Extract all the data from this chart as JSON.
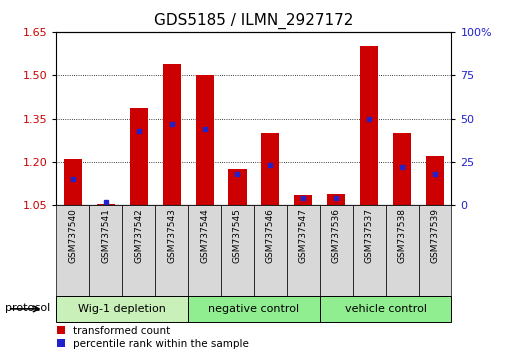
{
  "title": "GDS5185 / ILMN_2927172",
  "samples": [
    "GSM737540",
    "GSM737541",
    "GSM737542",
    "GSM737543",
    "GSM737544",
    "GSM737545",
    "GSM737546",
    "GSM737547",
    "GSM737536",
    "GSM737537",
    "GSM737538",
    "GSM737539"
  ],
  "transformed_count": [
    1.21,
    1.055,
    1.385,
    1.54,
    1.5,
    1.175,
    1.3,
    1.085,
    1.09,
    1.6,
    1.3,
    1.22
  ],
  "percentile_rank": [
    15,
    2,
    43,
    47,
    44,
    18,
    23,
    4,
    4,
    50,
    22,
    18
  ],
  "group_starts": [
    0,
    4,
    8
  ],
  "group_ends": [
    4,
    8,
    12
  ],
  "group_labels": [
    "Wig-1 depletion",
    "negative control",
    "vehicle control"
  ],
  "group_colors": [
    "#c8f0b8",
    "#90ee90",
    "#90ee90"
  ],
  "ylim_left": [
    1.05,
    1.65
  ],
  "yticks_left": [
    1.05,
    1.2,
    1.35,
    1.5,
    1.65
  ],
  "ylim_right": [
    0,
    100
  ],
  "yticks_right": [
    0,
    25,
    50,
    75,
    100
  ],
  "bar_color": "#cc0000",
  "dot_color": "#2222cc",
  "bar_width": 0.55,
  "tick_label_color_left": "#cc0000",
  "tick_label_color_right": "#2222cc",
  "sample_bg_color": "#d8d8d8",
  "protocol_label": "protocol"
}
